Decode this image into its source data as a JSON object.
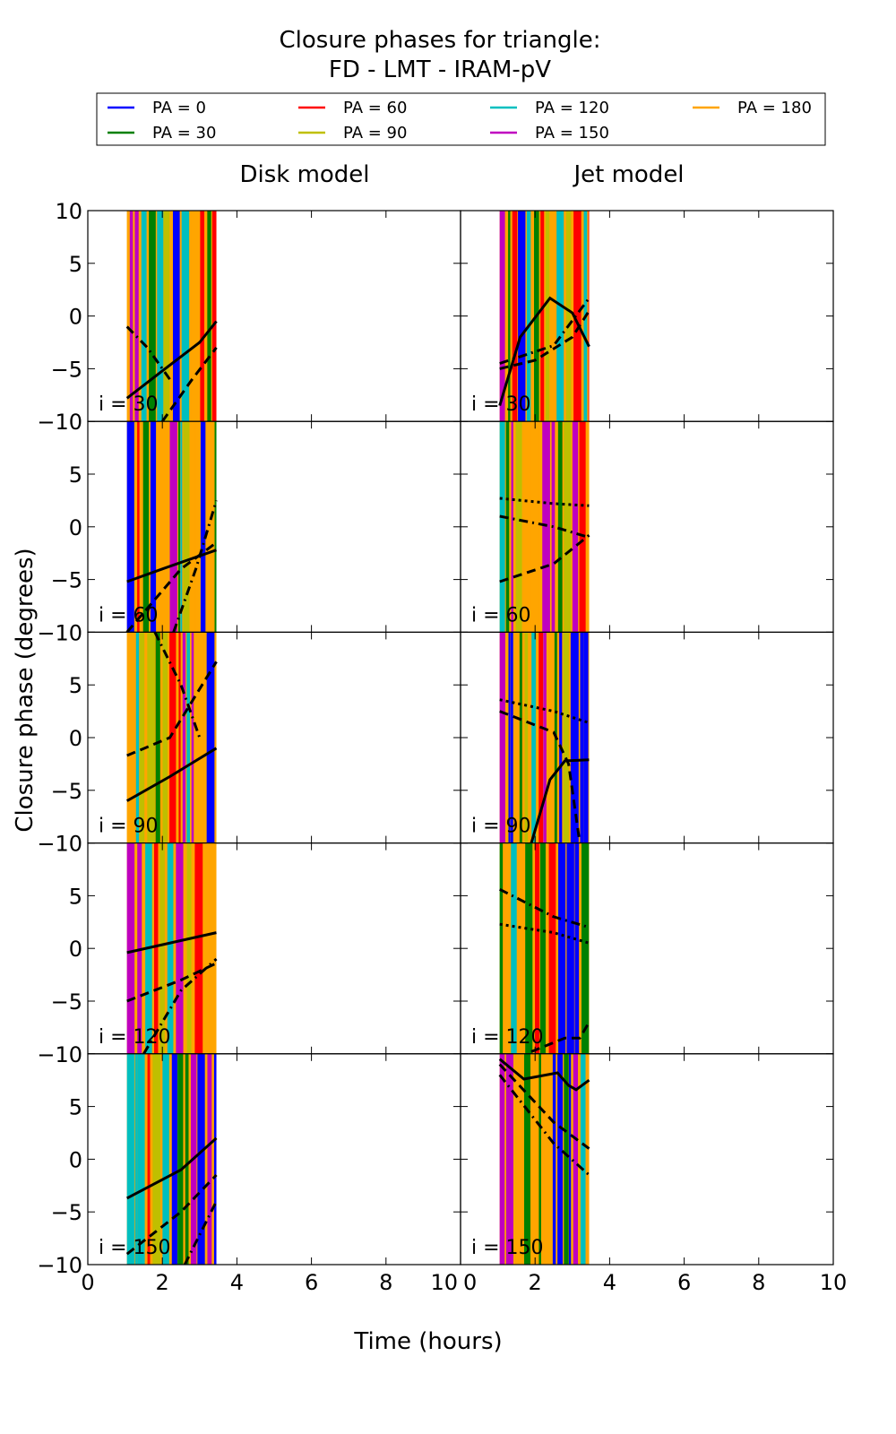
{
  "chart_data": {
    "type": "line",
    "title": "Closure phases for triangle:",
    "subtitle": "FD - LMT - IRAM-pV",
    "xlabel": "Time (hours)",
    "ylabel": "Closure phase (degrees)",
    "xlim": [
      0,
      10
    ],
    "ylim": [
      -10,
      10
    ],
    "xticks": [
      "0",
      "2",
      "4",
      "6",
      "8",
      "10"
    ],
    "yticks": [
      "−10",
      "−5",
      "0",
      "5",
      "10"
    ],
    "grid": false,
    "legend_placement": "top",
    "legend": [
      {
        "label": "PA = 0",
        "color": "#0000ff"
      },
      {
        "label": "PA = 30",
        "color": "#008000"
      },
      {
        "label": "PA = 60",
        "color": "#ff0000"
      },
      {
        "label": "PA = 90",
        "color": "#bfbf00"
      },
      {
        "label": "PA = 120",
        "color": "#00bfbf"
      },
      {
        "label": "PA = 150",
        "color": "#bf00bf"
      },
      {
        "label": "PA = 180",
        "color": "#ffa500"
      }
    ],
    "columns": [
      "Disk model",
      "Jet model"
    ],
    "rows": [
      "i = 30",
      "i = 60",
      "i = 90",
      "i = 120",
      "i = 150"
    ],
    "data_time_range": [
      1.05,
      3.45
    ],
    "panels": [
      {
        "col": 0,
        "row": 0,
        "curves": [
          {
            "style": "solid",
            "points": [
              [
                1.05,
                -7.8
              ],
              [
                2,
                -5.2
              ],
              [
                3,
                -2.5
              ],
              [
                3.45,
                -0.5
              ]
            ]
          },
          {
            "style": "dashed",
            "points": [
              [
                2,
                -10
              ],
              [
                2.8,
                -6
              ],
              [
                3.45,
                -3
              ]
            ]
          },
          {
            "style": "dashdot",
            "points": [
              [
                1.05,
                -1
              ],
              [
                1.6,
                -3
              ],
              [
                2.2,
                -6
              ]
            ]
          }
        ]
      },
      {
        "col": 1,
        "row": 0,
        "curves": [
          {
            "style": "solid",
            "points": [
              [
                1.05,
                -8.5
              ],
              [
                1.6,
                -2
              ],
              [
                2.4,
                1.7
              ],
              [
                3,
                0.3
              ],
              [
                3.45,
                -2.9
              ]
            ]
          },
          {
            "style": "dashed",
            "points": [
              [
                1.05,
                -5
              ],
              [
                2,
                -4.2
              ],
              [
                3,
                -2
              ],
              [
                3.45,
                0.5
              ]
            ]
          },
          {
            "style": "dashdot",
            "points": [
              [
                1.05,
                -4.5
              ],
              [
                2.5,
                -2.8
              ],
              [
                3.45,
                1.7
              ]
            ]
          }
        ]
      },
      {
        "col": 0,
        "row": 1,
        "curves": [
          {
            "style": "solid",
            "points": [
              [
                1.05,
                -5.2
              ],
              [
                2,
                -4
              ],
              [
                3.45,
                -2.2
              ]
            ]
          },
          {
            "style": "dashed",
            "points": [
              [
                1.05,
                -10
              ],
              [
                2.5,
                -4
              ],
              [
                3.45,
                -1.5
              ]
            ]
          },
          {
            "style": "dashdot",
            "points": [
              [
                2.3,
                -10
              ],
              [
                2.9,
                -4
              ],
              [
                3.45,
                2.5
              ]
            ]
          }
        ]
      },
      {
        "col": 1,
        "row": 1,
        "curves": [
          {
            "style": "dashed",
            "points": [
              [
                1.05,
                -5.2
              ],
              [
                2.5,
                -3.5
              ],
              [
                3.45,
                -0.8
              ]
            ]
          },
          {
            "style": "dashdot",
            "points": [
              [
                1.05,
                1
              ],
              [
                2.5,
                0
              ],
              [
                3.45,
                -1
              ]
            ]
          },
          {
            "style": "dotted",
            "points": [
              [
                1.05,
                2.7
              ],
              [
                2.5,
                2.2
              ],
              [
                3.45,
                2
              ]
            ]
          }
        ]
      },
      {
        "col": 0,
        "row": 2,
        "curves": [
          {
            "style": "solid",
            "points": [
              [
                1.05,
                -6
              ],
              [
                2.2,
                -3.7
              ],
              [
                3.45,
                -1
              ]
            ]
          },
          {
            "style": "dashed",
            "points": [
              [
                1.05,
                -1.7
              ],
              [
                2.2,
                0
              ],
              [
                3.45,
                7.2
              ]
            ]
          },
          {
            "style": "dashdot",
            "points": [
              [
                1.8,
                10
              ],
              [
                2.5,
                5
              ],
              [
                3,
                0
              ]
            ]
          }
        ]
      },
      {
        "col": 1,
        "row": 2,
        "curves": [
          {
            "style": "solid",
            "points": [
              [
                1.9,
                -10
              ],
              [
                2.4,
                -4
              ],
              [
                2.8,
                -2.2
              ],
              [
                3.45,
                -2.1
              ]
            ]
          },
          {
            "style": "dashed",
            "points": [
              [
                1.05,
                2.5
              ],
              [
                2.5,
                0.5
              ],
              [
                2.9,
                -2.5
              ],
              [
                3.2,
                -10
              ]
            ]
          },
          {
            "style": "dotted",
            "points": [
              [
                1.05,
                3.6
              ],
              [
                2.5,
                2.5
              ],
              [
                3.45,
                1.4
              ]
            ]
          }
        ]
      },
      {
        "col": 0,
        "row": 3,
        "curves": [
          {
            "style": "solid",
            "points": [
              [
                1.05,
                -0.4
              ],
              [
                3.45,
                1.5
              ]
            ]
          },
          {
            "style": "dashed",
            "points": [
              [
                1.05,
                -5
              ],
              [
                2.5,
                -3
              ],
              [
                3.45,
                -1.4
              ]
            ]
          },
          {
            "style": "dashdot",
            "points": [
              [
                1.5,
                -10
              ],
              [
                2.5,
                -4
              ],
              [
                3.45,
                -1
              ]
            ]
          }
        ]
      },
      {
        "col": 1,
        "row": 3,
        "curves": [
          {
            "style": "dashed",
            "points": [
              [
                1.9,
                -9.8
              ],
              [
                2.8,
                -8.5
              ],
              [
                3.2,
                -8.5
              ],
              [
                3.45,
                -7
              ]
            ]
          },
          {
            "style": "dashdot",
            "points": [
              [
                1.05,
                5.6
              ],
              [
                2.5,
                3
              ],
              [
                3.45,
                2
              ]
            ]
          },
          {
            "style": "dotted",
            "points": [
              [
                1.05,
                2.3
              ],
              [
                2.5,
                1.5
              ],
              [
                3.45,
                0.5
              ]
            ]
          }
        ]
      },
      {
        "col": 0,
        "row": 4,
        "curves": [
          {
            "style": "solid",
            "points": [
              [
                1.05,
                -3.7
              ],
              [
                2.5,
                -1
              ],
              [
                3.45,
                2
              ]
            ]
          },
          {
            "style": "dashed",
            "points": [
              [
                1.05,
                -9
              ],
              [
                2.5,
                -5
              ],
              [
                3.45,
                -1.5
              ]
            ]
          },
          {
            "style": "dashdot",
            "points": [
              [
                2.6,
                -10
              ],
              [
                3.45,
                -4
              ]
            ]
          }
        ]
      },
      {
        "col": 1,
        "row": 4,
        "curves": [
          {
            "style": "solid",
            "points": [
              [
                1.05,
                9.5
              ],
              [
                1.7,
                7.6
              ],
              [
                2.6,
                8.2
              ],
              [
                2.9,
                7
              ],
              [
                3.1,
                6.6
              ],
              [
                3.45,
                7.5
              ]
            ]
          },
          {
            "style": "dashed",
            "points": [
              [
                1.05,
                9
              ],
              [
                2.5,
                3.5
              ],
              [
                3.45,
                1
              ]
            ]
          },
          {
            "style": "dashdot",
            "points": [
              [
                1.05,
                8
              ],
              [
                2.5,
                1.5
              ],
              [
                3.45,
                -1.5
              ]
            ]
          }
        ]
      }
    ]
  }
}
